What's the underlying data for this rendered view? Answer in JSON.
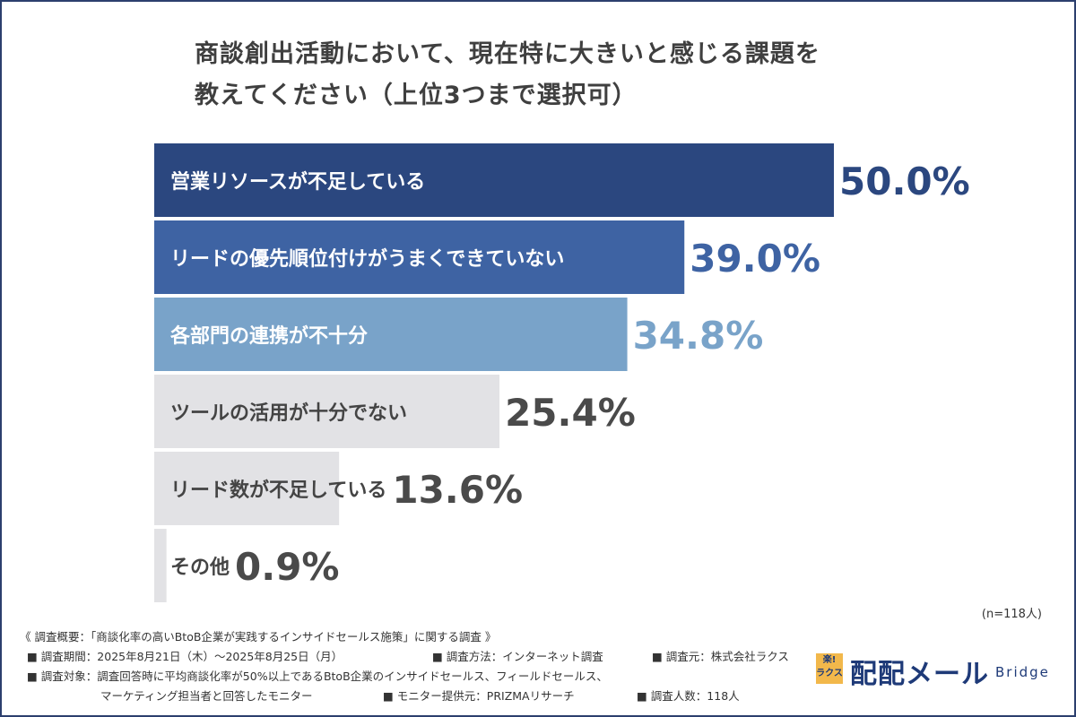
{
  "title_lines": [
    "商談創出活動において、現在特に大きいと感じる課題を",
    "教えてください（上位3つまで選択可）"
  ],
  "chart_data": {
    "type": "bar",
    "orientation": "horizontal",
    "title": "商談創出活動において、現在特に大きいと感じる課題を教えてください（上位3つまで選択可）",
    "categories": [
      "営業リソースが不足している",
      "リードの優先順位付けがうまくできていない",
      "各部門の連携が不十分",
      "ツールの活用が十分でない",
      "リード数が不足している",
      "その他"
    ],
    "values": [
      50.0,
      39.0,
      34.8,
      25.4,
      13.6,
      0.9
    ],
    "value_labels": [
      "50.0%",
      "39.0%",
      "34.8%",
      "25.4%",
      "13.6%",
      "0.9%"
    ],
    "bar_colors": [
      "#2b477f",
      "#3e63a3",
      "#79a3c9",
      "#e2e2e5",
      "#e2e2e5",
      "#e2e2e5"
    ],
    "value_colors": [
      "#2b477f",
      "#3e63a3",
      "#79a3c9",
      "#4a4a4a",
      "#4a4a4a",
      "#4a4a4a"
    ],
    "label_colors": [
      "#ffffff",
      "#ffffff",
      "#ffffff",
      "#444444",
      "#444444",
      "#444444"
    ],
    "xlim": [
      0,
      50
    ],
    "grid": false
  },
  "sample_note": "(n=118人)",
  "footer": {
    "line1": "《 調査概要：「商談化率の高いBtoB企業が実践するインサイドセールス施策」に関する調査 》",
    "period": "■ 調査期間：2025年8月21日（木）〜2025年8月25日（月）",
    "method": "■ 調査方法：インターネット調査",
    "source": "■ 調査元：株式会社ラクス",
    "target1": "■ 調査対象：調査回答時に平均商談化率が50%以上であるBtoB企業のインサイドセールス、フィールドセールス、",
    "target2": "マーケティング担当者と回答したモニター",
    "provider": "■ モニター提供元：PRIZMAリサーチ",
    "count": "■ 調査人数：118人"
  },
  "logo": {
    "badge_top": "楽!",
    "badge_bottom": "ラクス",
    "brand": "配配メール",
    "sub": "Bridge"
  }
}
